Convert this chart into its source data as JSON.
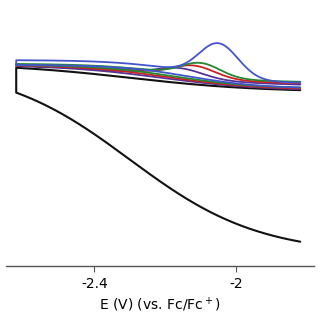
{
  "xlabel": "E (V) (vs. Fc/Fc⁺)",
  "xlim": [
    -2.65,
    -1.78
  ],
  "ylim": [
    -0.85,
    0.25
  ],
  "xticks": [
    -2.4,
    -2.0
  ],
  "xtick_labels": [
    "-2.4",
    "-2"
  ],
  "background_color": "#ffffff",
  "figsize": [
    3.2,
    3.2
  ],
  "dpi": 100,
  "curve_colors": {
    "blue": "#4455cc",
    "green": "#228833",
    "red": "#cc2222",
    "purple": "#553399",
    "black": "#111111"
  },
  "lw_colored": 1.3,
  "lw_black": 1.5
}
